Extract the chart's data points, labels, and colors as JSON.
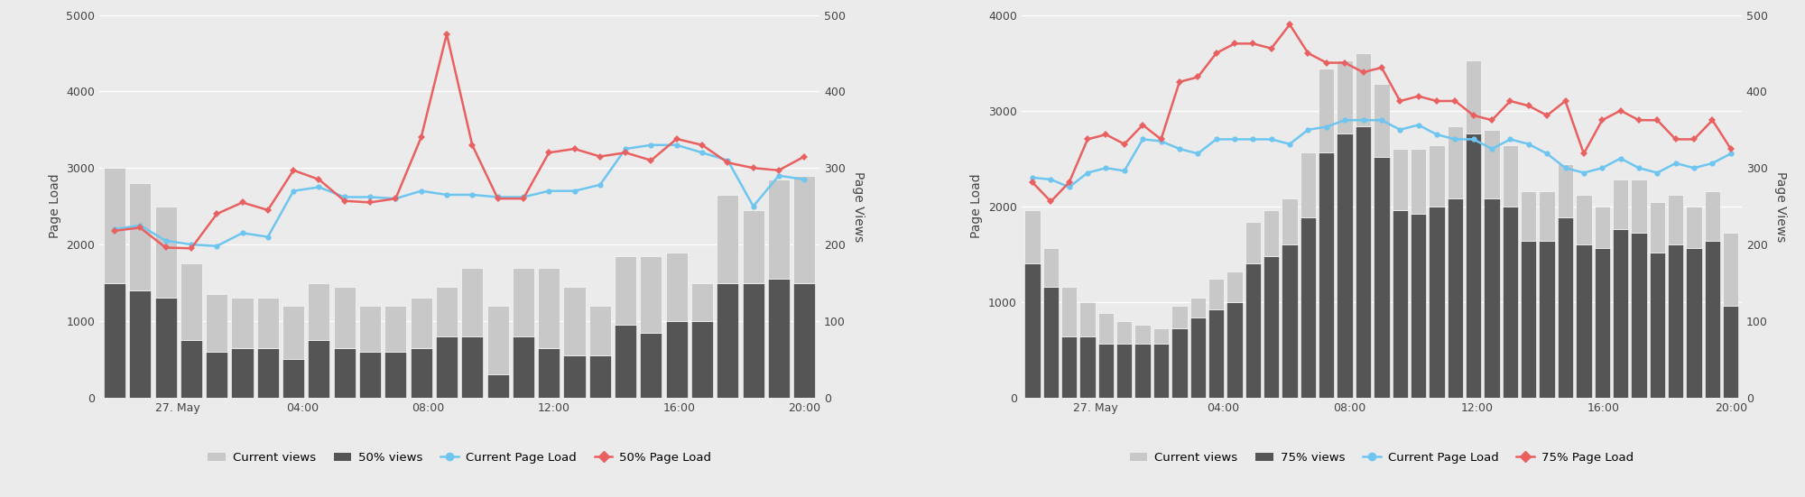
{
  "chart1": {
    "ylabel_left": "Page Load",
    "ylabel_right": "Page Views",
    "ylim_left": [
      0,
      5000
    ],
    "ylim_right": [
      0,
      500
    ],
    "yticks_left": [
      0,
      1000,
      2000,
      3000,
      4000,
      5000
    ],
    "yticks_right": [
      0,
      100,
      200,
      300,
      400,
      500
    ],
    "x_tick_hours": [
      0,
      6,
      10,
      14,
      18,
      22,
      26,
      30,
      34,
      38,
      42,
      46
    ],
    "x_labels": [
      "",
      "27. May",
      "",
      "04:00",
      "",
      "08:00",
      "",
      "12:00",
      "",
      "16:00",
      "",
      "20:00"
    ],
    "n_bars": 28,
    "current_views": [
      300,
      280,
      250,
      175,
      135,
      130,
      130,
      120,
      150,
      145,
      120,
      120,
      130,
      145,
      170,
      120,
      170,
      170,
      145,
      120,
      185,
      185,
      190,
      150,
      265,
      245,
      285,
      290
    ],
    "p50_views": [
      150,
      140,
      130,
      75,
      60,
      65,
      65,
      50,
      75,
      65,
      60,
      60,
      65,
      80,
      80,
      30,
      80,
      65,
      55,
      55,
      95,
      85,
      100,
      100,
      150,
      150,
      155,
      150
    ],
    "current_load": [
      2200,
      2250,
      2050,
      2000,
      1980,
      2150,
      2100,
      2700,
      2750,
      2620,
      2620,
      2600,
      2700,
      2650,
      2650,
      2620,
      2620,
      2700,
      2700,
      2780,
      3250,
      3300,
      3300,
      3200,
      3100,
      2500,
      2900,
      2850
    ],
    "p50_load": [
      2180,
      2220,
      1960,
      1950,
      2400,
      2550,
      2450,
      2970,
      2850,
      2570,
      2550,
      2600,
      3400,
      4750,
      3300,
      2600,
      2600,
      3200,
      3250,
      3150,
      3200,
      3100,
      3380,
      3300,
      3070,
      3000,
      2970,
      3150
    ],
    "legend": [
      "Current views",
      "50% views",
      "Current Page Load",
      "50% Page Load"
    ],
    "bar_color_current": "#c8c8c8",
    "bar_color_pct": "#555555",
    "line_color_current": "#6ec6f0",
    "line_color_pct": "#e86060",
    "bg_color": "#ebebeb"
  },
  "chart2": {
    "ylabel_left": "Page Load",
    "ylabel_right": "Page Views",
    "ylim_left": [
      0,
      4000
    ],
    "ylim_right": [
      0,
      500
    ],
    "yticks_left": [
      0,
      1000,
      2000,
      3000,
      4000
    ],
    "yticks_right": [
      0,
      100,
      200,
      300,
      400,
      500
    ],
    "x_labels": [
      "",
      "27. May",
      "",
      "04:00",
      "",
      "08:00",
      "",
      "12:00",
      "",
      "16:00",
      "",
      "20:00"
    ],
    "n_bars": 39,
    "current_views": [
      245,
      195,
      145,
      125,
      110,
      100,
      95,
      90,
      120,
      130,
      155,
      165,
      230,
      245,
      260,
      320,
      430,
      440,
      450,
      410,
      325,
      325,
      330,
      355,
      440,
      350,
      330,
      270,
      270,
      305,
      265,
      250,
      285,
      285,
      255,
      265,
      250,
      270,
      215
    ],
    "p75_views": [
      175,
      145,
      80,
      80,
      70,
      70,
      70,
      70,
      90,
      105,
      115,
      125,
      175,
      185,
      200,
      235,
      320,
      345,
      355,
      315,
      245,
      240,
      250,
      260,
      345,
      260,
      250,
      205,
      205,
      235,
      200,
      195,
      220,
      215,
      190,
      200,
      195,
      205,
      120
    ],
    "current_load": [
      2300,
      2280,
      2200,
      2350,
      2400,
      2370,
      2700,
      2680,
      2600,
      2550,
      2700,
      2700,
      2700,
      2700,
      2650,
      2800,
      2830,
      2900,
      2900,
      2900,
      2800,
      2850,
      2750,
      2700,
      2700,
      2600,
      2700,
      2650,
      2550,
      2400,
      2350,
      2400,
      2500,
      2400,
      2350,
      2450,
      2400,
      2450,
      2550
    ],
    "p75_load": [
      2250,
      2050,
      2250,
      2700,
      2750,
      2650,
      2850,
      2700,
      3300,
      3350,
      3600,
      3700,
      3700,
      3650,
      3900,
      3600,
      3500,
      3500,
      3400,
      3450,
      3100,
      3150,
      3100,
      3100,
      2950,
      2900,
      3100,
      3050,
      2950,
      3100,
      2550,
      2900,
      3000,
      2900,
      2900,
      2700,
      2700,
      2900,
      2600
    ],
    "legend": [
      "Current views",
      "75% views",
      "Current Page Load",
      "75% Page Load"
    ],
    "bar_color_current": "#c8c8c8",
    "bar_color_pct": "#555555",
    "line_color_current": "#6ec6f0",
    "line_color_pct": "#e86060",
    "bg_color": "#ebebeb"
  }
}
